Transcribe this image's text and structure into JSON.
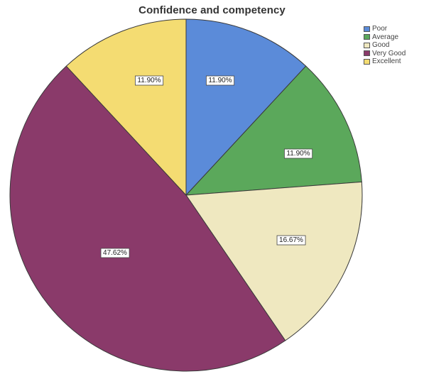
{
  "chart_data": {
    "type": "pie",
    "title": "Confidence and competency",
    "categories": [
      "Poor",
      "Average",
      "Good",
      "Very Good",
      "Excellent"
    ],
    "values": [
      11.9,
      11.9,
      16.67,
      47.62,
      11.9
    ],
    "data_labels": [
      "11.90%",
      "11.90%",
      "16.67%",
      "47.62%",
      "11.90%"
    ],
    "colors": [
      "#5b8bd9",
      "#5ba85b",
      "#efe8c0",
      "#8a3a6a",
      "#f4dc72"
    ],
    "start": "12 o'clock",
    "direction": "clockwise",
    "legend_position": "top-right"
  }
}
